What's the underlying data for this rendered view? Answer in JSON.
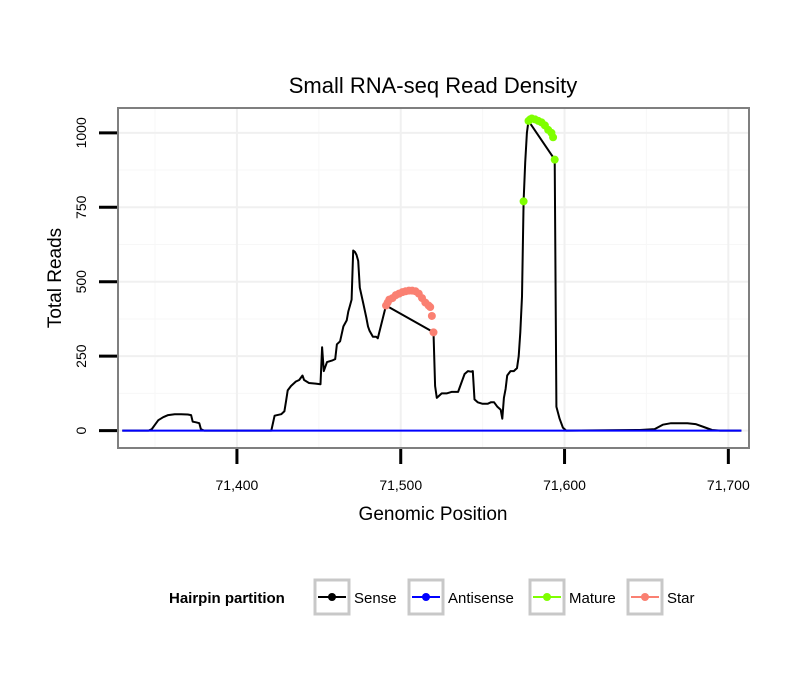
{
  "chart_data": {
    "type": "line",
    "title": "Small RNA-seq Read Density",
    "xlabel": "Genomic Position",
    "ylabel": "Total Reads",
    "xlim": [
      71328,
      71712
    ],
    "ylim": [
      -55,
      1080
    ],
    "x_ticks": [
      71400,
      71500,
      71600,
      71700
    ],
    "x_tick_labels": [
      "71,400",
      "71,500",
      "71,600",
      "71,700"
    ],
    "y_ticks": [
      0,
      250,
      500,
      750,
      1000
    ],
    "y_tick_labels": [
      "0",
      "250",
      "500",
      "750",
      "1000"
    ],
    "grid": true,
    "legend": {
      "title": "Hairpin partition",
      "position": "bottom",
      "entries": [
        {
          "label": "Sense",
          "color": "#000000"
        },
        {
          "label": "Antisense",
          "color": "#0000ff"
        },
        {
          "label": "Mature",
          "color": "#7fff00"
        },
        {
          "label": "Star",
          "color": "#fa8072"
        }
      ]
    },
    "series": [
      {
        "name": "Sense",
        "color": "#000000",
        "points": [
          [
            71330,
            0
          ],
          [
            71346,
            0
          ],
          [
            71348,
            5
          ],
          [
            71350,
            20
          ],
          [
            71352,
            35
          ],
          [
            71355,
            45
          ],
          [
            71358,
            52
          ],
          [
            71362,
            55
          ],
          [
            71366,
            55
          ],
          [
            71370,
            54
          ],
          [
            71372,
            52
          ],
          [
            71373,
            30
          ],
          [
            71375,
            28
          ],
          [
            71377,
            25
          ],
          [
            71378,
            5
          ],
          [
            71380,
            0
          ],
          [
            71421,
            0
          ],
          [
            71423,
            50
          ],
          [
            71427,
            55
          ],
          [
            71429,
            65
          ],
          [
            71430,
            100
          ],
          [
            71431,
            135
          ],
          [
            71433,
            150
          ],
          [
            71436,
            165
          ],
          [
            71438,
            170
          ],
          [
            71440,
            185
          ],
          [
            71441,
            170
          ],
          [
            71444,
            160
          ],
          [
            71448,
            158
          ],
          [
            71451,
            156
          ],
          [
            71452,
            280
          ],
          [
            71453,
            200
          ],
          [
            71455,
            230
          ],
          [
            71458,
            235
          ],
          [
            71460,
            240
          ],
          [
            71461,
            290
          ],
          [
            71463,
            300
          ],
          [
            71465,
            350
          ],
          [
            71467,
            370
          ],
          [
            71468,
            400
          ],
          [
            71469,
            420
          ],
          [
            71470,
            440
          ],
          [
            71471,
            605
          ],
          [
            71472,
            600
          ],
          [
            71473,
            590
          ],
          [
            71474,
            570
          ],
          [
            71475,
            480
          ],
          [
            71477,
            430
          ],
          [
            71479,
            380
          ],
          [
            71480,
            350
          ],
          [
            71481,
            335
          ],
          [
            71483,
            315
          ],
          [
            71485,
            315
          ],
          [
            71486,
            310
          ],
          [
            71491,
            420
          ],
          [
            71520,
            330
          ],
          [
            71521,
            150
          ],
          [
            71522,
            110
          ],
          [
            71525,
            125
          ],
          [
            71528,
            125
          ],
          [
            71531,
            130
          ],
          [
            71535,
            130
          ],
          [
            71537,
            160
          ],
          [
            71539,
            190
          ],
          [
            71541,
            200
          ],
          [
            71543,
            198
          ],
          [
            71544,
            200
          ],
          [
            71545,
            105
          ],
          [
            71547,
            95
          ],
          [
            71550,
            90
          ],
          [
            71553,
            90
          ],
          [
            71555,
            95
          ],
          [
            71557,
            95
          ],
          [
            71559,
            80
          ],
          [
            71561,
            70
          ],
          [
            71562,
            40
          ],
          [
            71563,
            110
          ],
          [
            71564,
            140
          ],
          [
            71565,
            185
          ],
          [
            71567,
            200
          ],
          [
            71569,
            200
          ],
          [
            71571,
            210
          ],
          [
            71572,
            250
          ],
          [
            71573,
            330
          ],
          [
            71574,
            450
          ],
          [
            71575,
            770
          ],
          [
            71576,
            900
          ],
          [
            71577,
            1000
          ],
          [
            71578,
            1040
          ],
          [
            71594,
            910
          ],
          [
            71595,
            80
          ],
          [
            71597,
            40
          ],
          [
            71599,
            10
          ],
          [
            71601,
            0
          ],
          [
            71646,
            2
          ],
          [
            71655,
            5
          ],
          [
            71660,
            20
          ],
          [
            71665,
            25
          ],
          [
            71675,
            25
          ],
          [
            71680,
            22
          ],
          [
            71685,
            12
          ],
          [
            71690,
            2
          ],
          [
            71695,
            0
          ],
          [
            71708,
            0
          ]
        ]
      },
      {
        "name": "Star",
        "color": "#fa8072",
        "points": [
          [
            71491,
            420
          ],
          [
            71492,
            430
          ],
          [
            71493,
            440
          ],
          [
            71495,
            445
          ],
          [
            71497,
            455
          ],
          [
            71499,
            460
          ],
          [
            71501,
            465
          ],
          [
            71503,
            468
          ],
          [
            71505,
            470
          ],
          [
            71507,
            470
          ],
          [
            71509,
            468
          ],
          [
            71511,
            460
          ],
          [
            71513,
            445
          ],
          [
            71515,
            430
          ],
          [
            71517,
            420
          ],
          [
            71518,
            415
          ],
          [
            71519,
            385
          ],
          [
            71520,
            330
          ]
        ]
      },
      {
        "name": "Mature",
        "color": "#7fff00",
        "points": [
          [
            71575,
            770
          ],
          [
            71578,
            1040
          ],
          [
            71579,
            1045
          ],
          [
            71580,
            1048
          ],
          [
            71582,
            1045
          ],
          [
            71584,
            1040
          ],
          [
            71586,
            1035
          ],
          [
            71588,
            1025
          ],
          [
            71590,
            1010
          ],
          [
            71592,
            1000
          ],
          [
            71593,
            985
          ],
          [
            71594,
            910
          ]
        ]
      },
      {
        "name": "Antisense",
        "color": "#0000ff",
        "points": [
          [
            71330,
            0
          ],
          [
            71708,
            0
          ]
        ]
      }
    ]
  }
}
